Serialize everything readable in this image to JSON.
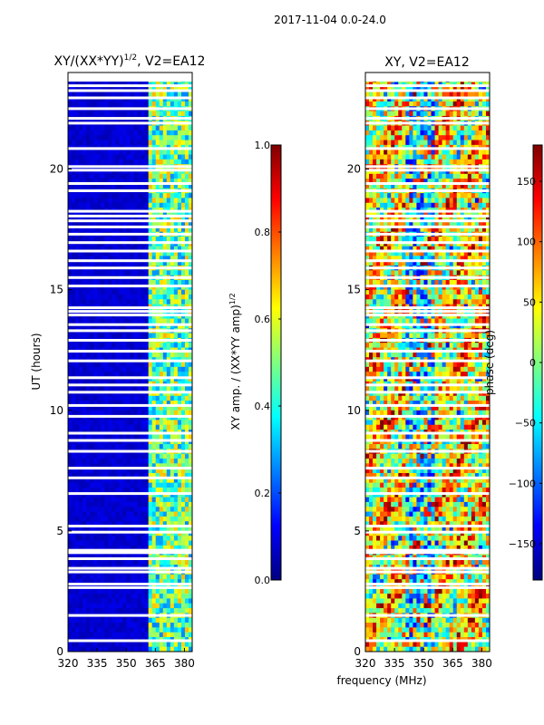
{
  "figure": {
    "suptitle": "2017-11-04 0.0-24.0",
    "xlabel": "frequency (MHz)"
  },
  "chart_data": [
    {
      "type": "heatmap",
      "title_main": "XY/(XX*YY)",
      "title_sup": "1/2",
      "title_rest": ", V2=EA12",
      "xlabel": "",
      "ylabel": "UT (hours)",
      "xlim": [
        320,
        384
      ],
      "ylim": [
        0,
        24
      ],
      "xticks": [
        320,
        335,
        350,
        365,
        380
      ],
      "yticks": [
        0,
        5,
        10,
        15,
        20
      ],
      "colormap": "jet",
      "colorbar": {
        "label_main": "XY amp. / (XX*YY amp)",
        "label_sup": "1/2",
        "range": [
          0.0,
          1.0
        ],
        "ticks": [
          "0.0",
          "0.2",
          "0.4",
          "0.6",
          "0.8",
          "1.0"
        ]
      },
      "description_values": {
        "background_level": 0.05,
        "band_start_mhz": 361,
        "band_level": 0.45
      }
    },
    {
      "type": "heatmap",
      "title": "XY, V2=EA12",
      "xlabel": "",
      "ylabel": "",
      "xlim": [
        320,
        384
      ],
      "ylim": [
        0,
        24
      ],
      "xticks": [
        320,
        335,
        350,
        365,
        380
      ],
      "yticks": [
        0,
        5,
        10,
        15,
        20
      ],
      "colormap": "jet",
      "colorbar": {
        "label": "phase (deg)",
        "range": [
          -180,
          180
        ],
        "ticks": [
          "−150",
          "−100",
          "−50",
          "0",
          "50",
          "100",
          "150"
        ]
      }
    }
  ],
  "gaps_hours": [
    0.45,
    1.5,
    2.65,
    2.8,
    3.3,
    3.45,
    3.85,
    4.1,
    4.2,
    4.95,
    5.2,
    6.55,
    7.2,
    7.6,
    8.3,
    8.75,
    9.05,
    9.75,
    10.2,
    10.75,
    11.05,
    11.35,
    12.05,
    12.45,
    12.9,
    13.3,
    13.55,
    13.95,
    14.1,
    14.25,
    15.15,
    15.5,
    15.9,
    16.2,
    16.6,
    16.95,
    17.3,
    17.6,
    17.85,
    18.05,
    18.25,
    19.1,
    19.4,
    19.95,
    20.1,
    20.85,
    21.9,
    22.1,
    22.5,
    22.95,
    23.25,
    23.45
  ]
}
